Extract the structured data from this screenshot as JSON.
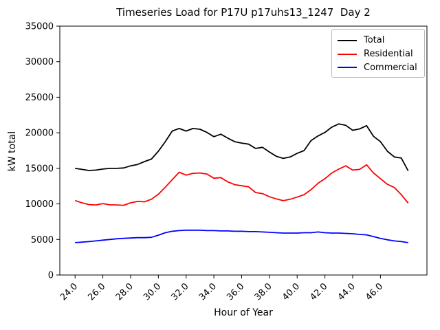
{
  "chart_data": {
    "type": "line",
    "title": "Timeseries Load for P17U p17uhs13_1247  Day 2",
    "xlabel": "Hour of Year",
    "ylabel": "kW total",
    "xlim": [
      22.9,
      49.35
    ],
    "ylim": [
      0,
      35000
    ],
    "grid": false,
    "legend_position": "upper right",
    "x_ticks": {
      "values": [
        24,
        26,
        28,
        30,
        32,
        34,
        36,
        38,
        40,
        42,
        44,
        46
      ],
      "labels": [
        "24.0",
        "26.0",
        "28.0",
        "30.0",
        "32.0",
        "34.0",
        "36.0",
        "38.0",
        "40.0",
        "42.0",
        "44.0",
        "46.0"
      ]
    },
    "y_ticks": {
      "values": [
        0,
        5000,
        10000,
        15000,
        20000,
        25000,
        30000,
        35000
      ],
      "labels": [
        "0",
        "5000",
        "10000",
        "15000",
        "20000",
        "25000",
        "30000",
        "35000"
      ]
    },
    "x": [
      24.0,
      24.5,
      25.0,
      25.5,
      26.0,
      26.5,
      27.0,
      27.5,
      28.0,
      28.5,
      29.0,
      29.5,
      30.0,
      30.5,
      31.0,
      31.5,
      32.0,
      32.5,
      33.0,
      33.5,
      34.0,
      34.5,
      35.0,
      35.5,
      36.0,
      36.5,
      37.0,
      37.5,
      38.0,
      38.5,
      39.0,
      39.5,
      40.0,
      40.5,
      41.0,
      41.5,
      42.0,
      42.5,
      43.0,
      43.5,
      44.0,
      44.5,
      45.0,
      45.5,
      46.0,
      46.5,
      47.0,
      47.5,
      48.0
    ],
    "series": [
      {
        "name": "Total",
        "color": "#000000",
        "values": [
          15000,
          14850,
          14700,
          14750,
          14900,
          15000,
          15000,
          15050,
          15350,
          15550,
          15950,
          16300,
          17400,
          18750,
          20250,
          20600,
          20250,
          20600,
          20500,
          20050,
          19450,
          19800,
          19250,
          18750,
          18550,
          18400,
          17800,
          17950,
          17300,
          16700,
          16400,
          16600,
          17100,
          17500,
          18900,
          19550,
          20050,
          20800,
          21250,
          21050,
          20350,
          20550,
          21000,
          19500,
          18750,
          17400,
          16600,
          16450,
          14650
        ]
      },
      {
        "name": "Residential",
        "color": "#ff0000",
        "values": [
          10470,
          10150,
          9900,
          9850,
          10050,
          9870,
          9850,
          9800,
          10150,
          10350,
          10300,
          10650,
          11350,
          12350,
          13400,
          14450,
          14050,
          14300,
          14350,
          14200,
          13600,
          13700,
          13100,
          12700,
          12550,
          12400,
          11600,
          11450,
          11000,
          10700,
          10450,
          10650,
          10950,
          11300,
          12000,
          12900,
          13550,
          14350,
          14900,
          15350,
          14750,
          14850,
          15500,
          14350,
          13550,
          12750,
          12300,
          11300,
          10100
        ]
      },
      {
        "name": "Commercial",
        "color": "#0000ff",
        "values": [
          4550,
          4620,
          4700,
          4800,
          4900,
          5000,
          5100,
          5150,
          5200,
          5250,
          5250,
          5300,
          5600,
          5950,
          6150,
          6250,
          6300,
          6300,
          6300,
          6250,
          6250,
          6200,
          6200,
          6150,
          6150,
          6100,
          6100,
          6050,
          6000,
          5950,
          5900,
          5900,
          5900,
          5950,
          5950,
          6050,
          5950,
          5900,
          5900,
          5850,
          5800,
          5700,
          5650,
          5400,
          5150,
          4950,
          4800,
          4700,
          4550
        ]
      }
    ]
  }
}
